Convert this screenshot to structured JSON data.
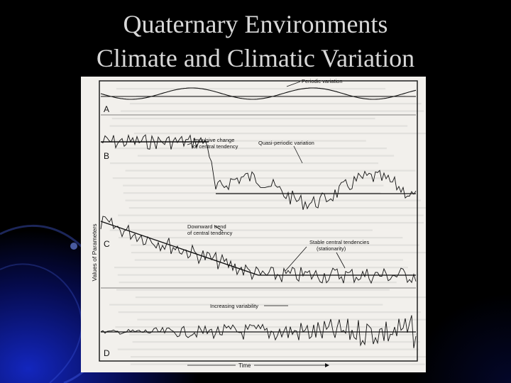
{
  "slide": {
    "title_line1": "Quaternary Environments",
    "title_line2": "Climate and Climatic Variation"
  },
  "figure": {
    "y_axis_label": "Values of Parameters",
    "x_axis_label": "Time",
    "panels": [
      {
        "letter": "A",
        "annotation": "Periodic variation"
      },
      {
        "letter": "B",
        "annotation_1": "Impulsive change of central tendency",
        "annotation_2": "Quasi-periodic variation"
      },
      {
        "letter": "C",
        "annotation_1": "Downward trend of central tendency",
        "annotation_2": "Stable central tendencies (stationarity)"
      },
      {
        "letter": "D",
        "annotation": "Increasing variability"
      }
    ],
    "annotation_lines": {
      "b_impulse_1": "Impulsive change",
      "b_impulse_2": "of central tendency",
      "c_trend_1": "Downward trend",
      "c_trend_2": "of central tendency",
      "c_stable_1": "Stable central tendencies",
      "c_stable_2": "(stationarity)"
    }
  }
}
